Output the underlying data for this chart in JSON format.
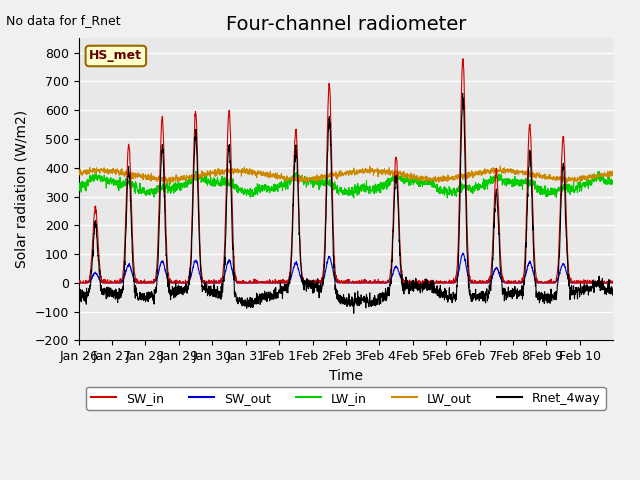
{
  "title": "Four-channel radiometer",
  "top_left_text": "No data for f_Rnet",
  "station_label": "HS_met",
  "xlabel": "Time",
  "ylabel": "Solar radiation (W/m2)",
  "ylim": [
    -200,
    850
  ],
  "yticks": [
    -200,
    -100,
    0,
    100,
    200,
    300,
    400,
    500,
    600,
    700,
    800
  ],
  "date_labels": [
    "Jan 26",
    "Jan 27",
    "Jan 28",
    "Jan 29",
    "Jan 30",
    "Jan 31",
    "Feb 1",
    "Feb 2",
    "Feb 3",
    "Feb 4",
    "Feb 5",
    "Feb 6",
    "Feb 7",
    "Feb 8",
    "Feb 9",
    "Feb 10"
  ],
  "colors": {
    "SW_in": "#cc0000",
    "SW_out": "#0000cc",
    "LW_in": "#00cc00",
    "LW_out": "#cc8800",
    "Rnet_4way": "#000000"
  },
  "legend_entries": [
    "SW_in",
    "SW_out",
    "LW_in",
    "LW_out",
    "Rnet_4way"
  ],
  "background_color": "#e8e8e8",
  "grid_color": "#ffffff",
  "title_fontsize": 14,
  "label_fontsize": 10,
  "tick_fontsize": 9
}
